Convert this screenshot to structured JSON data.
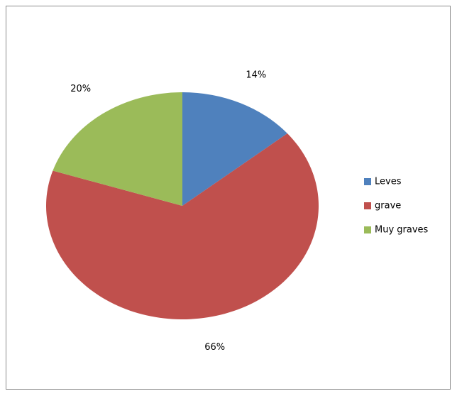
{
  "chart_data": {
    "type": "pie",
    "categories": [
      "Leves",
      "grave",
      "Muy graves"
    ],
    "values": [
      14,
      66,
      20
    ],
    "value_labels": [
      "14%",
      "66%",
      "20%"
    ],
    "colors": [
      "#4f81bd",
      "#c0504d",
      "#9bbb59"
    ],
    "legend": "right"
  }
}
